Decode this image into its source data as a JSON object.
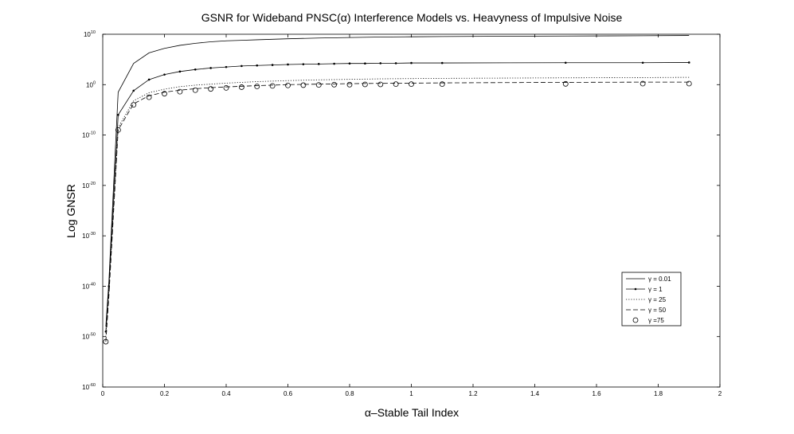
{
  "chart_data": {
    "type": "line",
    "title": "GSNR for Wideband PNSC(α) Interference Models vs. Heavyness of Impulsive Noise",
    "xlabel": "α–Stable Tail Index",
    "ylabel": "Log GNSR",
    "xlim": [
      0,
      2
    ],
    "ylim_log10": [
      -60,
      10
    ],
    "yscale": "log",
    "grid": false,
    "legend_position": "right",
    "x_ticks": [
      "0",
      "0.2",
      "0.4",
      "0.6",
      "0.8",
      "1",
      "1.2",
      "1.4",
      "1.6",
      "1.8",
      "2"
    ],
    "y_ticks": [
      {
        "base": "10",
        "exp": "10"
      },
      {
        "base": "10",
        "exp": "0"
      },
      {
        "base": "10",
        "exp": "-10"
      },
      {
        "base": "10",
        "exp": "-20"
      },
      {
        "base": "10",
        "exp": "-30"
      },
      {
        "base": "10",
        "exp": "-40"
      },
      {
        "base": "10",
        "exp": "-50"
      },
      {
        "base": "10",
        "exp": "-60"
      }
    ],
    "series": [
      {
        "name": "γ = 0.01",
        "style": "solid",
        "marker": "none",
        "x": [
          0.01,
          0.02,
          0.05,
          0.1,
          0.15,
          0.2,
          0.25,
          0.3,
          0.35,
          0.4,
          0.45,
          0.5,
          0.6,
          0.7,
          0.8,
          0.9,
          1.0,
          1.1,
          1.5,
          1.75,
          1.9
        ],
        "log10_y": [
          -48,
          -39,
          -1.5,
          4.2,
          6.3,
          7.2,
          7.8,
          8.2,
          8.5,
          8.7,
          8.8,
          8.9,
          9.1,
          9.25,
          9.35,
          9.45,
          9.5,
          9.55,
          9.65,
          9.7,
          9.75
        ]
      },
      {
        "name": "γ = 1",
        "style": "solid",
        "marker": "dot",
        "x": [
          0.01,
          0.02,
          0.05,
          0.1,
          0.15,
          0.2,
          0.25,
          0.3,
          0.35,
          0.4,
          0.45,
          0.5,
          0.55,
          0.6,
          0.65,
          0.7,
          0.75,
          0.8,
          0.85,
          0.9,
          0.95,
          1.0,
          1.1,
          1.5,
          1.75,
          1.9
        ],
        "log10_y": [
          -49,
          -40,
          -6,
          -1.2,
          1.0,
          2.0,
          2.6,
          3.0,
          3.3,
          3.5,
          3.7,
          3.8,
          3.9,
          4.0,
          4.05,
          4.1,
          4.15,
          4.2,
          4.2,
          4.25,
          4.25,
          4.3,
          4.3,
          4.35,
          4.35,
          4.4
        ]
      },
      {
        "name": "γ = 25",
        "style": "dotted",
        "marker": "none",
        "x": [
          0.01,
          0.02,
          0.05,
          0.1,
          0.15,
          0.2,
          0.25,
          0.3,
          0.35,
          0.4,
          0.5,
          0.6,
          0.7,
          0.8,
          0.9,
          1.0,
          1.1,
          1.5,
          1.75,
          1.9
        ],
        "log10_y": [
          -50,
          -41,
          -8.5,
          -3.2,
          -1.6,
          -0.9,
          -0.4,
          -0.1,
          0.1,
          0.3,
          0.6,
          0.8,
          0.95,
          1.05,
          1.15,
          1.2,
          1.25,
          1.35,
          1.4,
          1.45
        ]
      },
      {
        "name": "γ = 50",
        "style": "dashed",
        "marker": "none",
        "x": [
          0.01,
          0.02,
          0.05,
          0.1,
          0.15,
          0.2,
          0.25,
          0.3,
          0.35,
          0.4,
          0.5,
          0.6,
          0.7,
          0.8,
          0.9,
          1.0,
          1.1,
          1.5,
          1.75,
          1.9
        ],
        "log10_y": [
          -51,
          -42,
          -9,
          -3.8,
          -2.2,
          -1.5,
          -1.1,
          -0.8,
          -0.6,
          -0.45,
          -0.2,
          0.0,
          0.1,
          0.2,
          0.25,
          0.3,
          0.35,
          0.45,
          0.5,
          0.5
        ]
      },
      {
        "name": "γ =75",
        "style": "none",
        "marker": "circle",
        "x": [
          0.01,
          0.05,
          0.1,
          0.15,
          0.2,
          0.25,
          0.3,
          0.35,
          0.4,
          0.45,
          0.5,
          0.55,
          0.6,
          0.65,
          0.7,
          0.75,
          0.8,
          0.85,
          0.9,
          0.95,
          1.0,
          1.1,
          1.5,
          1.75,
          1.9
        ],
        "log10_y": [
          -51,
          -9,
          -4,
          -2.5,
          -1.8,
          -1.4,
          -1.1,
          -0.85,
          -0.65,
          -0.5,
          -0.35,
          -0.25,
          -0.15,
          -0.1,
          -0.05,
          0.0,
          0.0,
          0.05,
          0.05,
          0.1,
          0.1,
          0.1,
          0.15,
          0.2,
          0.2
        ]
      }
    ]
  },
  "colors": {
    "line": "#000000",
    "background": "#ffffff"
  }
}
